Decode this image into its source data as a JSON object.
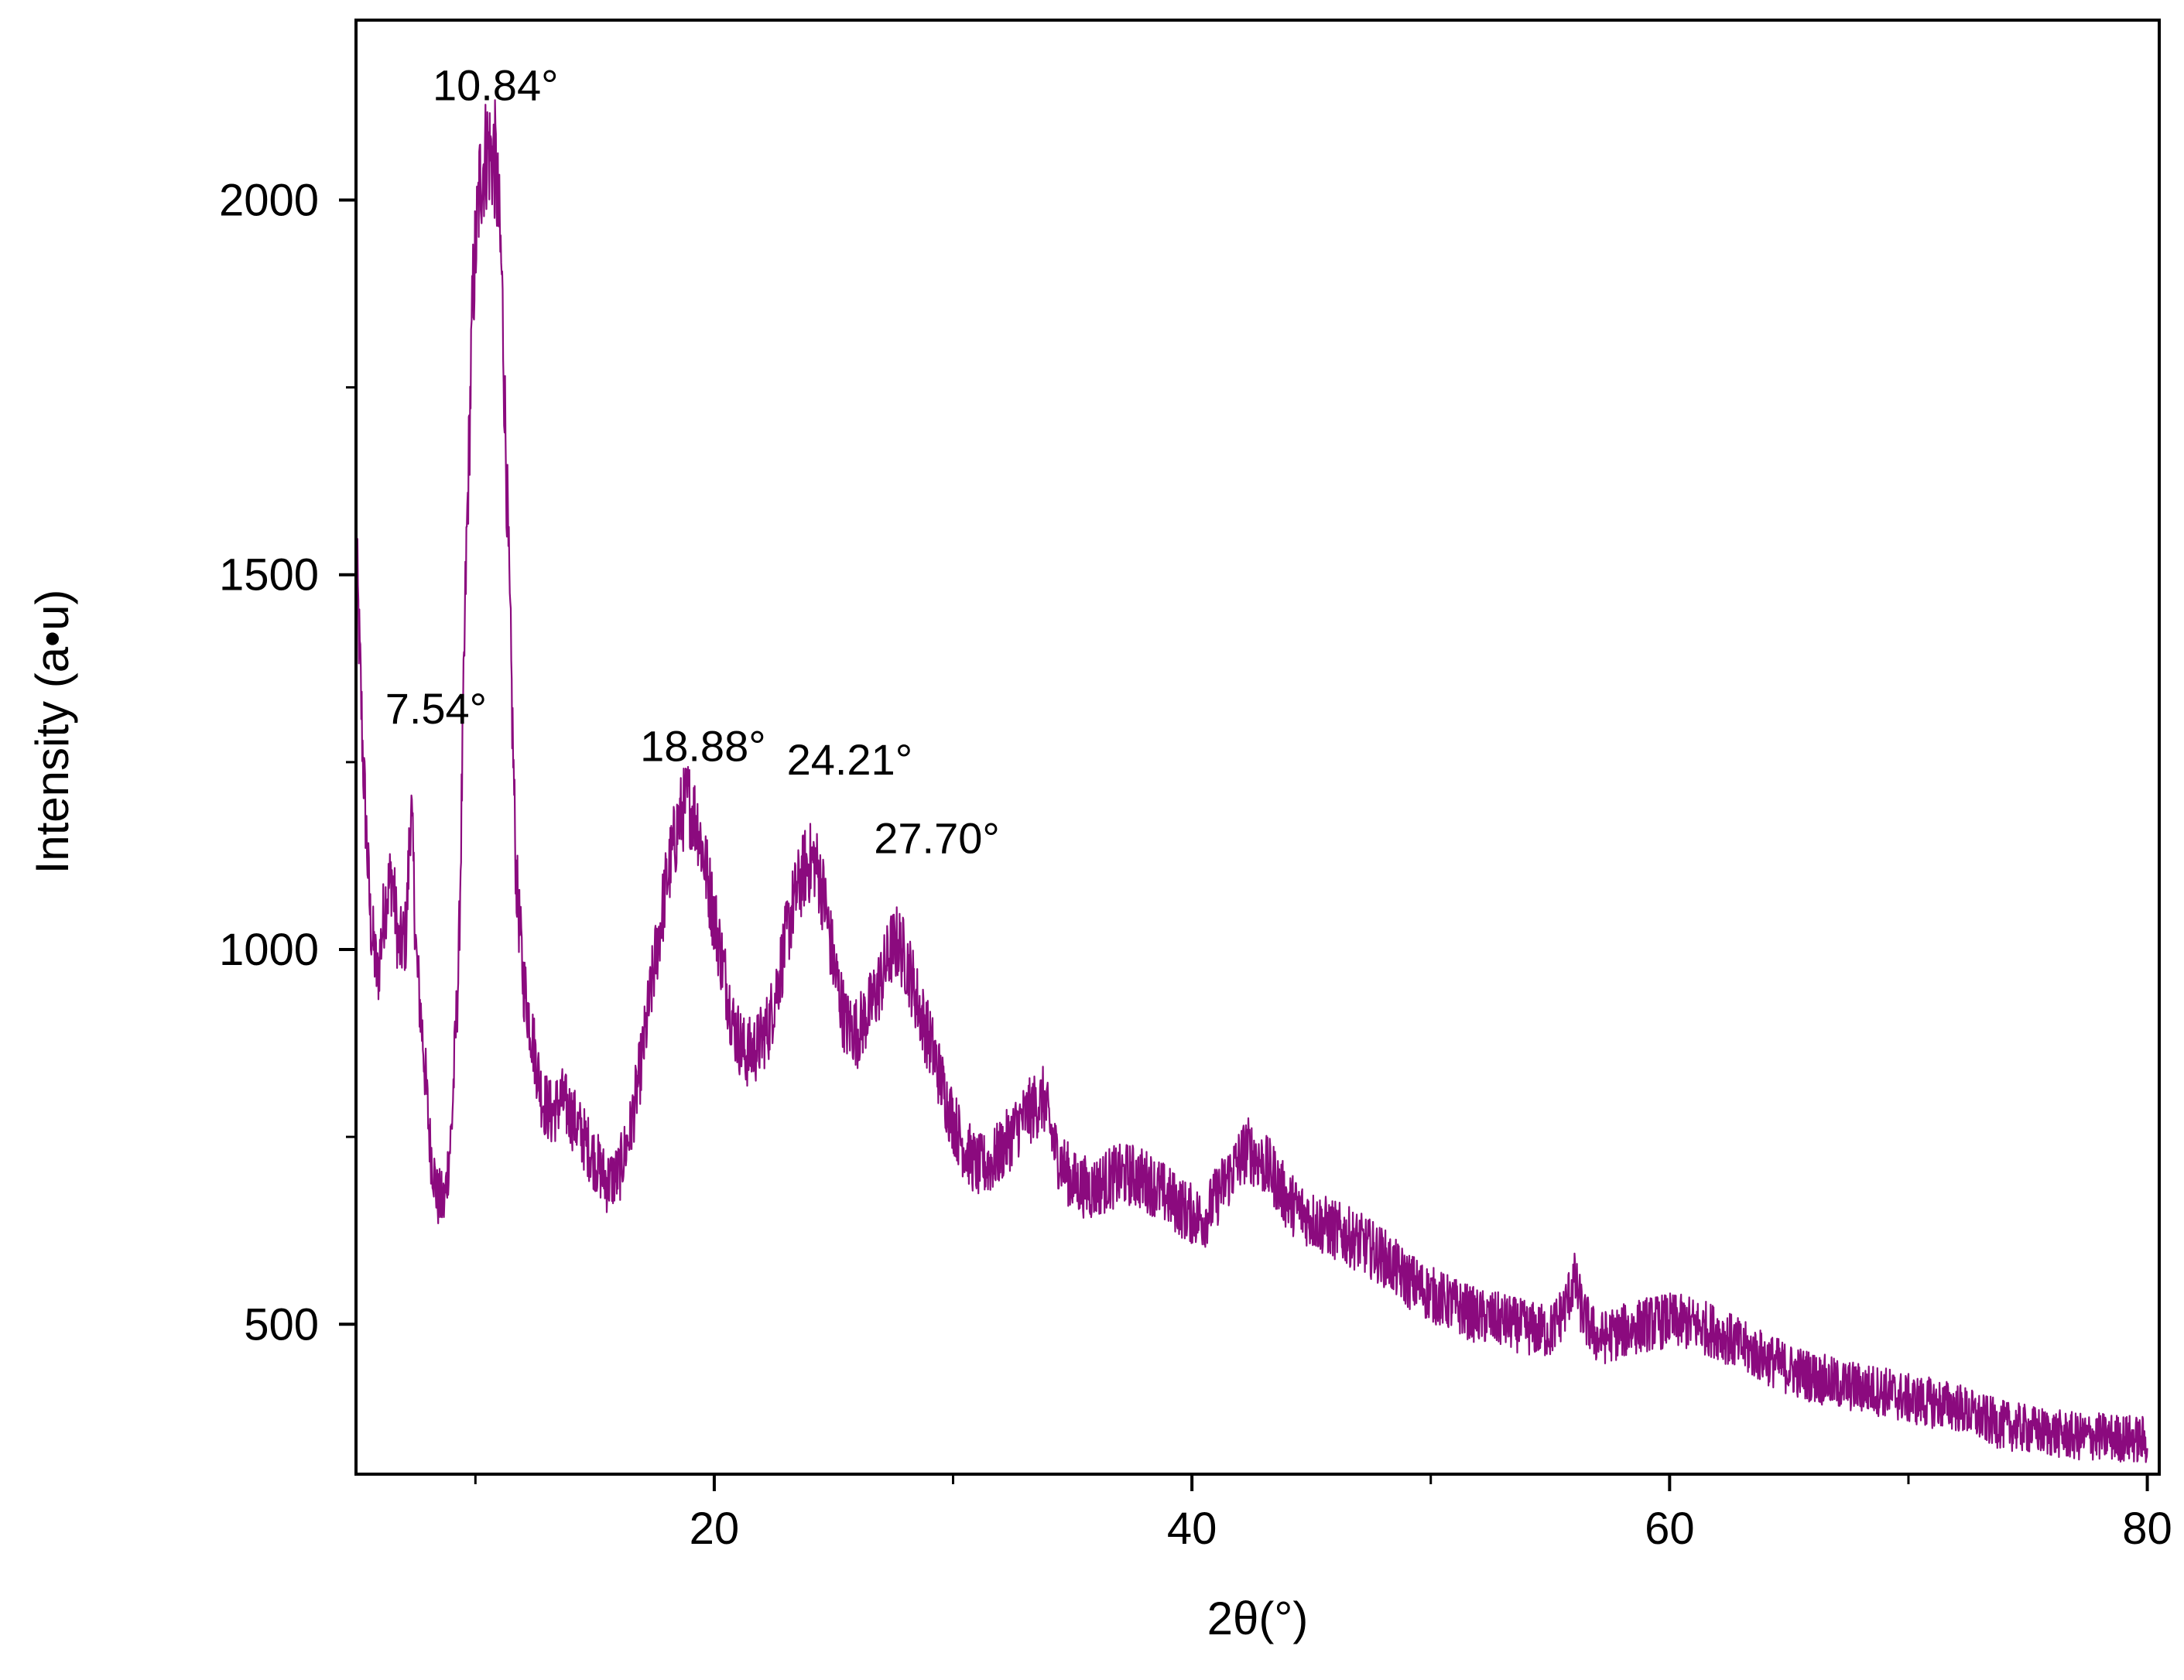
{
  "chart_data": {
    "type": "line",
    "title": "",
    "xlabel": "2θ(°)",
    "ylabel": "Intensity (a•u)",
    "xlim": [
      5,
      80.5
    ],
    "ylim": [
      300,
      2240
    ],
    "x_ticks": [
      20,
      40,
      60,
      80
    ],
    "x_minor_ticks": [
      10,
      30,
      50,
      70
    ],
    "y_ticks": [
      500,
      1000,
      1500,
      2000
    ],
    "y_minor_ticks": [
      750,
      1250,
      1750
    ],
    "grid": false,
    "legend": "none",
    "series": [
      {
        "color": "#8b0a7e",
        "x": [
          5.0,
          5.3,
          5.6,
          5.9,
          6.2,
          6.5,
          6.8,
          7.1,
          7.3,
          7.54,
          7.8,
          8.1,
          8.4,
          8.7,
          9.0,
          9.3,
          9.6,
          9.9,
          10.2,
          10.5,
          10.84,
          11.1,
          11.4,
          11.7,
          12.0,
          12.4,
          12.8,
          13.2,
          13.6,
          14.0,
          14.5,
          15.0,
          15.5,
          16.0,
          16.5,
          17.0,
          17.5,
          18.0,
          18.5,
          18.88,
          19.3,
          19.8,
          20.3,
          20.8,
          21.3,
          21.8,
          22.3,
          22.8,
          23.3,
          23.8,
          24.21,
          24.6,
          25.0,
          25.5,
          26.0,
          26.5,
          27.0,
          27.4,
          27.7,
          28.1,
          28.6,
          29.2,
          29.8,
          30.4,
          31.0,
          31.6,
          32.2,
          32.8,
          33.4,
          33.8,
          34.3,
          35.0,
          35.8,
          36.6,
          37.4,
          38.2,
          39.0,
          39.8,
          40.5,
          41.2,
          41.8,
          42.3,
          42.8,
          43.4,
          44.0,
          45.0,
          46.0,
          47.0,
          48.0,
          49.0,
          50.0,
          51.0,
          52.0,
          53.0,
          54.0,
          55.0,
          55.6,
          56.0,
          56.4,
          57.0,
          58.0,
          59.0,
          60.0,
          61.0,
          62.0,
          63.0,
          64.0,
          65.0,
          66.0,
          67.0,
          68.0,
          69.0,
          70.0,
          71.0,
          72.0,
          73.0,
          74.0,
          75.0,
          76.0,
          77.0,
          78.0,
          79.0,
          80.0
        ],
        "y": [
          1540,
          1250,
          1040,
          960,
          1060,
          1100,
          1000,
          1020,
          1200,
          980,
          880,
          740,
          670,
          660,
          760,
          980,
          1500,
          1880,
          2030,
          2070,
          2050,
          1900,
          1500,
          1100,
          960,
          880,
          800,
          780,
          800,
          780,
          750,
          720,
          690,
          700,
          760,
          860,
          980,
          1090,
          1170,
          1200,
          1170,
          1080,
          990,
          900,
          860,
          870,
          900,
          980,
          1060,
          1110,
          1120,
          1070,
          980,
          900,
          890,
          920,
          960,
          1000,
          1010,
          980,
          920,
          860,
          790,
          740,
          710,
          715,
          740,
          770,
          790,
          800,
          730,
          690,
          680,
          695,
          700,
          690,
          670,
          650,
          640,
          680,
          710,
          735,
          720,
          700,
          665,
          640,
          625,
          610,
          590,
          560,
          540,
          525,
          510,
          505,
          495,
          490,
          520,
          560,
          510,
          480,
          490,
          500,
          505,
          500,
          490,
          470,
          455,
          440,
          430,
          420,
          415,
          410,
          400,
          395,
          390,
          375,
          365,
          360,
          355,
          350,
          350,
          348,
          345
        ]
      }
    ],
    "annotations": [
      {
        "text": "10.84°",
        "x": 10.84,
        "y": 2030
      },
      {
        "text": "7.54°",
        "x": 7.54,
        "y": 1260
      },
      {
        "text": "18.88°",
        "x": 18.88,
        "y": 1200
      },
      {
        "text": "24.21°",
        "x": 24.21,
        "y": 1120
      },
      {
        "text": "27.70°",
        "x": 27.7,
        "y": 1010
      }
    ]
  }
}
